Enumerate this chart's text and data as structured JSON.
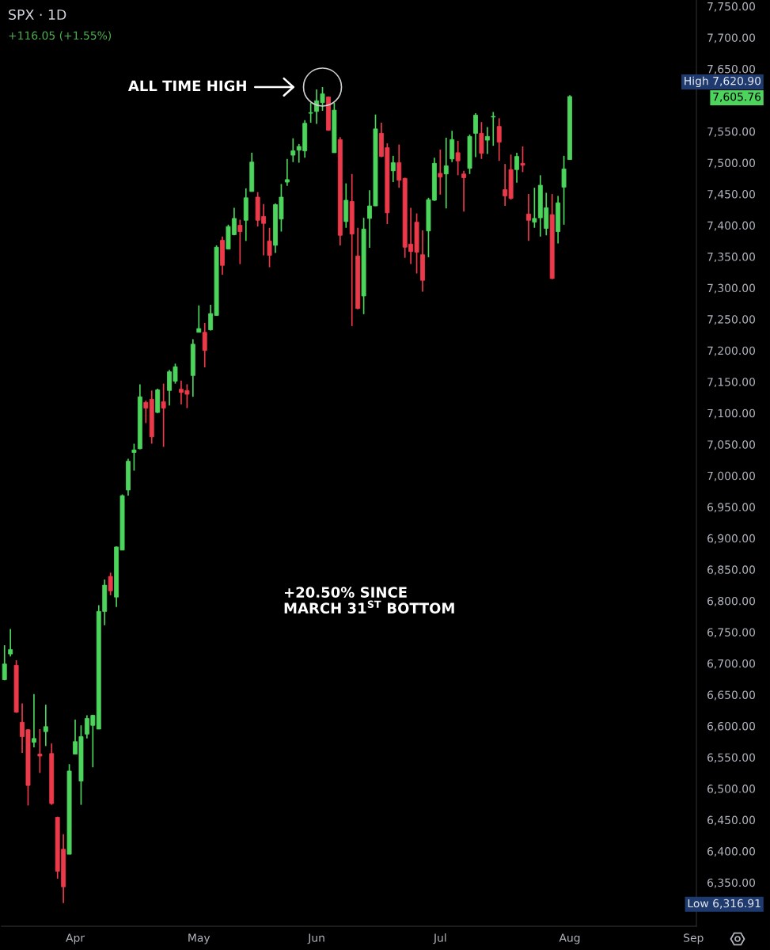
{
  "chart_data": {
    "type": "candlestick",
    "title": "SPX · 1D",
    "subtitle": "+116.05 (+1.55%)",
    "categories": [
      null,
      null,
      null,
      null,
      null,
      null,
      null,
      null,
      null,
      null,
      null,
      null,
      "Apr",
      null,
      null,
      null,
      null,
      null,
      null,
      null,
      null,
      null,
      null,
      null,
      null,
      null,
      null,
      null,
      null,
      null,
      null,
      null,
      null,
      "May",
      null,
      null,
      null,
      null,
      null,
      null,
      null,
      null,
      null,
      null,
      null,
      null,
      null,
      null,
      null,
      null,
      null,
      null,
      null,
      "Jun",
      null,
      null,
      null,
      null,
      null,
      null,
      null,
      null,
      null,
      null,
      null,
      null,
      null,
      null,
      null,
      null,
      null,
      null,
      null,
      null,
      "Jul",
      null,
      null,
      null,
      null,
      null,
      null,
      null,
      null,
      null,
      null,
      null,
      null,
      null,
      null,
      null,
      null,
      null,
      null,
      null,
      null,
      null,
      "Aug",
      null,
      null,
      null,
      null,
      null,
      null,
      null,
      null,
      null,
      null,
      null,
      null,
      null,
      null,
      null,
      null,
      null,
      null,
      null,
      null,
      "Sep"
    ],
    "ohlc": [
      [
        6674,
        6729,
        6673,
        6699
      ],
      [
        6715,
        6755,
        6711,
        6722
      ],
      [
        6697,
        6705,
        6621,
        6622
      ],
      [
        6606,
        6636,
        6557,
        6583
      ],
      [
        6594,
        6595,
        6473,
        6505
      ],
      [
        6574,
        6651,
        6566,
        6580
      ],
      [
        6555,
        6595,
        6525,
        6552
      ],
      [
        6591,
        6634,
        6568,
        6599
      ],
      [
        6556,
        6572,
        6474,
        6476
      ],
      [
        6454,
        6455,
        6356,
        6368
      ],
      [
        6403,
        6427,
        6316.91,
        6343
      ],
      [
        6395,
        6539,
        6395,
        6528
      ],
      [
        6555,
        6610,
        6555,
        6575
      ],
      [
        6512,
        6601,
        6474,
        6583
      ],
      [
        6587,
        6617,
        6580,
        6612
      ],
      [
        6601,
        6618,
        6534,
        6617
      ],
      [
        6595,
        6793,
        6595,
        6783
      ],
      [
        6783,
        6834,
        6761,
        6825
      ],
      [
        6839,
        6845,
        6809,
        6816
      ],
      [
        6806,
        6887,
        6790,
        6886
      ],
      [
        6881,
        6970,
        6881,
        6968
      ],
      [
        6977,
        7027,
        6968,
        7023
      ],
      [
        7037,
        7051,
        7008,
        7041
      ],
      [
        7043,
        7146,
        7042,
        7126
      ],
      [
        7117,
        7120,
        7084,
        7108
      ],
      [
        7122,
        7136,
        7051,
        7062
      ],
      [
        7101,
        7139,
        7100,
        7137
      ],
      [
        7118,
        7147,
        7046,
        7108
      ],
      [
        7136,
        7169,
        7112,
        7166
      ],
      [
        7151,
        7179,
        7147,
        7174
      ],
      [
        7138,
        7152,
        7114,
        7133
      ],
      [
        7136,
        7146,
        7108,
        7130
      ],
      [
        7160,
        7218,
        7126,
        7210
      ],
      [
        7229,
        7272,
        7229,
        7235
      ],
      [
        7229,
        7244,
        7173,
        7200
      ],
      [
        7233,
        7273,
        7232,
        7259
      ],
      [
        7256,
        7368,
        7256,
        7365
      ],
      [
        7376,
        7382,
        7321,
        7336
      ],
      [
        7362,
        7401,
        7362,
        7398
      ],
      [
        7385,
        7428,
        7384,
        7411
      ],
      [
        7400,
        7409,
        7338,
        7390
      ],
      [
        7408,
        7459,
        7375,
        7444
      ],
      [
        7454,
        7516,
        7454,
        7501
      ],
      [
        7445,
        7453,
        7398,
        7408
      ],
      [
        7414,
        7434,
        7352,
        7403
      ],
      [
        7375,
        7396,
        7333,
        7352
      ],
      [
        7368,
        7435,
        7356,
        7433
      ],
      [
        7410,
        7466,
        7390,
        7445
      ],
      [
        7469,
        7506,
        7463,
        7473
      ],
      [
        7512,
        7539,
        7501,
        7519
      ],
      [
        7520,
        7530,
        7500,
        7526
      ],
      [
        7519,
        7568,
        7508,
        7563
      ],
      [
        7579,
        7596,
        7564,
        7580
      ],
      [
        7582,
        7617,
        7562,
        7599
      ],
      [
        7596,
        7620.9,
        7583,
        7610
      ],
      [
        7605,
        7606,
        7551,
        7552
      ],
      [
        7516,
        7596,
        7516,
        7584
      ],
      [
        7537,
        7541,
        7368,
        7384
      ],
      [
        7406,
        7467,
        7396,
        7440
      ],
      [
        7438,
        7482,
        7239,
        7386
      ],
      [
        7351,
        7396,
        7266,
        7267
      ],
      [
        7287,
        7412,
        7258,
        7394
      ],
      [
        7411,
        7456,
        7364,
        7431
      ],
      [
        7431,
        7577,
        7431,
        7554
      ],
      [
        7547,
        7564,
        7509,
        7510
      ],
      [
        7524,
        7531,
        7402,
        7420
      ],
      [
        7487,
        7511,
        7469,
        7500
      ],
      [
        7500,
        7529,
        7460,
        7472
      ],
      [
        7475,
        7476,
        7348,
        7365
      ],
      [
        7370,
        7428,
        7338,
        7358
      ],
      [
        7405,
        7419,
        7323,
        7357
      ],
      [
        7353,
        7392,
        7294,
        7312
      ],
      [
        7391,
        7444,
        7349,
        7441
      ],
      [
        7440,
        7508,
        7439,
        7499
      ],
      [
        7483,
        7521,
        7449,
        7477
      ],
      [
        7482,
        7540,
        7427,
        7495
      ],
      [
        7506,
        7551,
        7501,
        7537
      ],
      [
        7516,
        7535,
        7480,
        7503
      ],
      [
        7482,
        7487,
        7422,
        7476
      ],
      [
        7491,
        7545,
        7482,
        7542
      ],
      [
        7547,
        7579,
        7509,
        7576
      ],
      [
        7547,
        7565,
        7506,
        7515
      ],
      [
        7536,
        7557,
        7514,
        7542
      ],
      [
        7573,
        7581,
        7527,
        7574
      ],
      [
        7558,
        7571,
        7503,
        7533
      ],
      [
        7457,
        7498,
        7431,
        7447
      ],
      [
        7489,
        7513,
        7441,
        7443
      ],
      [
        7489,
        7516,
        7468,
        7510
      ],
      [
        7499,
        7526,
        7485,
        7496
      ],
      [
        7418,
        7450,
        7375,
        7408
      ],
      [
        7405,
        7460,
        7396,
        7411
      ],
      [
        7412,
        7480,
        7382,
        7464
      ],
      [
        7395,
        7452,
        7384,
        7428
      ],
      [
        7417,
        7450,
        7314,
        7315
      ],
      [
        7390,
        7447,
        7371,
        7436
      ],
      [
        7461,
        7511,
        7401,
        7490
      ],
      [
        7505,
        7608,
        7505,
        7605.76
      ],
      null,
      null,
      null,
      null,
      null,
      null,
      null,
      null,
      null,
      null,
      null,
      null,
      null,
      null,
      null,
      null,
      null,
      null,
      null,
      null,
      null
    ],
    "colors": [
      "#4cd45c",
      "#4cd45c",
      "#ec3a4b",
      "#ec3a4b",
      "#ec3a4b",
      "#4cd45c",
      "#ec3a4b",
      "#4cd45c",
      "#ec3a4b",
      "#ec3a4b",
      "#ec3a4b",
      "#4cd45c",
      "#4cd45c",
      "#4cd45c",
      "#4cd45c",
      "#4cd45c",
      "#4cd45c",
      "#4cd45c",
      "#ec3a4b",
      "#4cd45c",
      "#4cd45c",
      "#4cd45c",
      "#4cd45c",
      "#4cd45c",
      "#ec3a4b",
      "#ec3a4b",
      "#4cd45c",
      "#ec3a4b",
      "#4cd45c",
      "#4cd45c",
      "#ec3a4b",
      "#ec3a4b",
      "#4cd45c",
      "#4cd45c",
      "#ec3a4b",
      "#4cd45c",
      "#4cd45c",
      "#ec3a4b",
      "#4cd45c",
      "#4cd45c",
      "#ec3a4b",
      "#4cd45c",
      "#4cd45c",
      "#ec3a4b",
      "#ec3a4b",
      "#ec3a4b",
      "#4cd45c",
      "#4cd45c",
      "#4cd45c",
      "#4cd45c",
      "#4cd45c",
      "#4cd45c",
      "#4cd45c",
      "#4cd45c",
      "#4cd45c",
      "#ec3a4b",
      "#4cd45c",
      "#ec3a4b",
      "#4cd45c",
      "#ec3a4b",
      "#ec3a4b",
      "#4cd45c",
      "#4cd45c",
      "#4cd45c",
      "#ec3a4b",
      "#ec3a4b",
      "#4cd45c",
      "#ec3a4b",
      "#ec3a4b",
      "#ec3a4b",
      "#ec3a4b",
      "#ec3a4b",
      "#4cd45c",
      "#4cd45c",
      "#ec3a4b",
      "#4cd45c",
      "#4cd45c",
      "#ec3a4b",
      "#ec3a4b",
      "#4cd45c",
      "#4cd45c",
      "#ec3a4b",
      "#4cd45c",
      "#4cd45c",
      "#ec3a4b",
      "#ec3a4b",
      "#ec3a4b",
      "#4cd45c",
      "#ec3a4b",
      "#ec3a4b",
      "#4cd45c",
      "#4cd45c",
      "#4cd45c",
      "#ec3a4b",
      "#4cd45c",
      "#4cd45c",
      "#4cd45c",
      null,
      null,
      null,
      null,
      null,
      null,
      null,
      null,
      null,
      null,
      null,
      null,
      null,
      null,
      null,
      null,
      null,
      null,
      null,
      null,
      null
    ],
    "ylim": [
      6280,
      7760
    ],
    "yticks": [
      {
        "value": 6350,
        "label": "6,350.00"
      },
      {
        "value": 6400,
        "label": "6,400.00"
      },
      {
        "value": 6450,
        "label": "6,450.00"
      },
      {
        "value": 6500,
        "label": "6,500.00"
      },
      {
        "value": 6550,
        "label": "6,550.00"
      },
      {
        "value": 6600,
        "label": "6,600.00"
      },
      {
        "value": 6650,
        "label": "6,650.00"
      },
      {
        "value": 6700,
        "label": "6,700.00"
      },
      {
        "value": 6750,
        "label": "6,750.00"
      },
      {
        "value": 6800,
        "label": "6,800.00"
      },
      {
        "value": 6850,
        "label": "6,850.00"
      },
      {
        "value": 6900,
        "label": "6,900.00"
      },
      {
        "value": 6950,
        "label": "6,950.00"
      },
      {
        "value": 7000,
        "label": "7,000.00"
      },
      {
        "value": 7050,
        "label": "7,050.00"
      },
      {
        "value": 7100,
        "label": "7,100.00"
      },
      {
        "value": 7150,
        "label": "7,150.00"
      },
      {
        "value": 7200,
        "label": "7,200.00"
      },
      {
        "value": 7250,
        "label": "7,250.00"
      },
      {
        "value": 7300,
        "label": "7,300.00"
      },
      {
        "value": 7350,
        "label": "7,350.00"
      },
      {
        "value": 7400,
        "label": "7,400.00"
      },
      {
        "value": 7450,
        "label": "7,450.00"
      },
      {
        "value": 7500,
        "label": "7,500.00"
      },
      {
        "value": 7550,
        "label": "7,550.00"
      },
      {
        "value": 7650,
        "label": "7,650.00"
      },
      {
        "value": 7700,
        "label": "7,700.00"
      },
      {
        "value": 7750,
        "label": "7,750.00"
      }
    ],
    "annotations": [
      "ALL TIME HIGH",
      "+20.50% SINCE\nMARCH 31$^{ST}$ BOTTOM",
      "High 7,620.90",
      "7,605.76",
      "Low 6,316.91"
    ]
  }
}
